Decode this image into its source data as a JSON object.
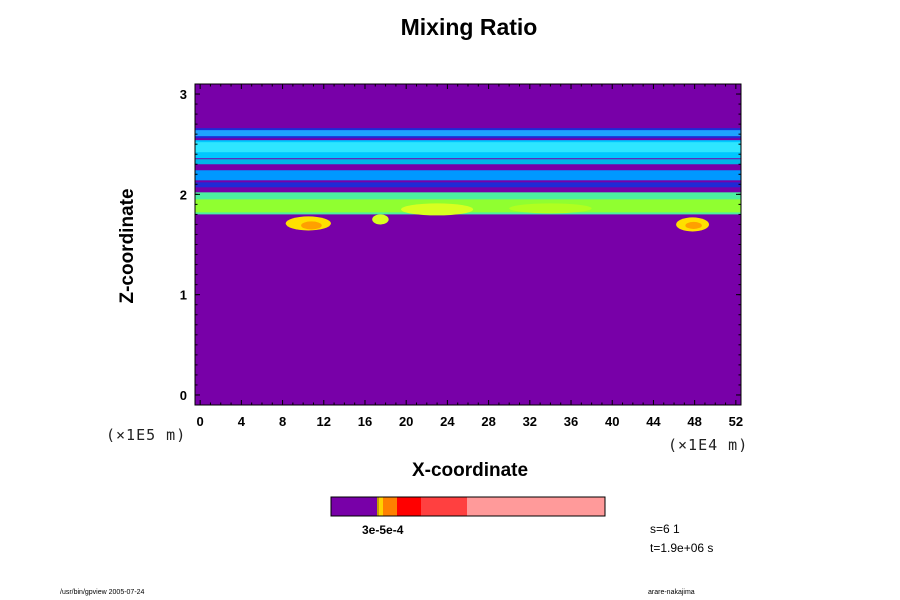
{
  "chart_data": {
    "type": "heatmap",
    "title": "Mixing Ratio",
    "xlabel": "X-coordinate",
    "ylabel": "Z-coordinate",
    "x_unit": "(×1E5 m)",
    "y_unit": "(×1E4 m)",
    "xlim": [
      -0.5,
      52.5
    ],
    "ylim": [
      -0.1,
      3.1
    ],
    "x_ticks": [
      "0",
      "4",
      "8",
      "12",
      "16",
      "20",
      "24",
      "28",
      "32",
      "36",
      "40",
      "44",
      "48",
      "52"
    ],
    "y_ticks": [
      "0",
      "1",
      "2",
      "3"
    ],
    "background_color": "#7800a8",
    "bands": [
      {
        "z_bottom": 2.56,
        "z_top": 2.66,
        "color": "#1f2ad6"
      },
      {
        "z_bottom": 2.58,
        "z_top": 2.64,
        "color": "#1fa3ff"
      },
      {
        "z_bottom": 2.36,
        "z_top": 2.54,
        "color": "#00c8ff"
      },
      {
        "z_bottom": 2.42,
        "z_top": 2.52,
        "color": "#2ee6ff"
      },
      {
        "z_bottom": 2.3,
        "z_top": 2.35,
        "color": "#00b6e8"
      },
      {
        "z_bottom": 2.14,
        "z_top": 2.24,
        "color": "#0098ff"
      },
      {
        "z_bottom": 2.07,
        "z_top": 2.12,
        "color": "#1f2ad6"
      },
      {
        "z_bottom": 1.8,
        "z_top": 2.02,
        "color": "#4cf0a0"
      },
      {
        "z_bottom": 1.82,
        "z_top": 1.95,
        "color": "#90ff30"
      }
    ],
    "blobs": [
      {
        "x": 10.5,
        "z": 1.71,
        "rx": 2.2,
        "rz": 0.07,
        "color": "#ffe000"
      },
      {
        "x": 10.8,
        "z": 1.69,
        "rx": 1.0,
        "rz": 0.04,
        "color": "#ffa000"
      },
      {
        "x": 47.8,
        "z": 1.7,
        "rx": 1.6,
        "rz": 0.07,
        "color": "#ffe000"
      },
      {
        "x": 47.9,
        "z": 1.69,
        "rx": 0.8,
        "rz": 0.035,
        "color": "#ffa000"
      },
      {
        "x": 23.0,
        "z": 1.85,
        "rx": 3.5,
        "rz": 0.06,
        "color": "#d8ff20"
      },
      {
        "x": 34.0,
        "z": 1.86,
        "rx": 4.0,
        "rz": 0.05,
        "color": "#b0ff20"
      },
      {
        "x": 17.5,
        "z": 1.75,
        "rx": 0.8,
        "rz": 0.05,
        "color": "#d8ff20"
      }
    ],
    "colorbar": {
      "colors": [
        "#7800a8",
        "#c0a000",
        "#ffd000",
        "#ff8000",
        "#ff0000",
        "#ff4040",
        "#ff9a9a"
      ],
      "widths": [
        46,
        2,
        4,
        14,
        24,
        46,
        138
      ],
      "label_text": "3e-5e-4"
    }
  },
  "info": {
    "s_label": "s=6 1",
    "t_label": "t=1.9e+06 s"
  },
  "footer": {
    "left": "/usr/bin/gpview 2005-07-24",
    "right": "arare-nakajima"
  }
}
